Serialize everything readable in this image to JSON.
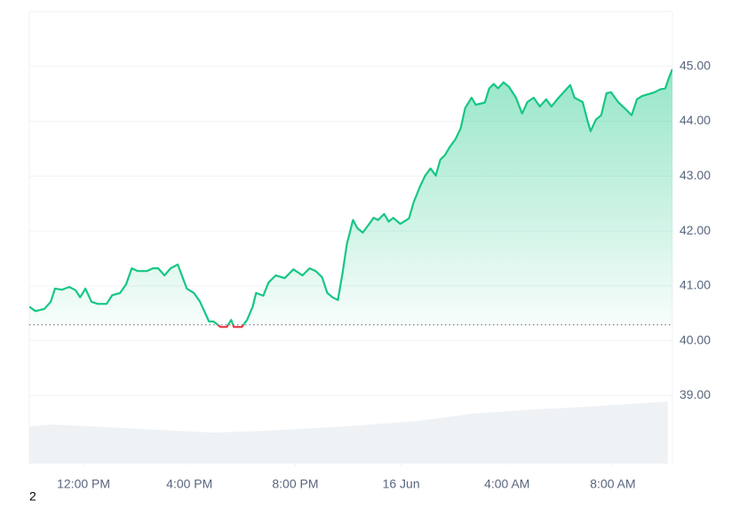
{
  "chart_data": {
    "type": "line",
    "x": [
      9.95,
      10.18,
      10.52,
      10.76,
      10.92,
      11.19,
      11.46,
      11.7,
      11.87,
      12.07,
      12.3,
      12.54,
      12.87,
      13.08,
      13.38,
      13.61,
      13.82,
      14.05,
      14.39,
      14.62,
      14.82,
      15.06,
      15.29,
      15.56,
      15.9,
      16.17,
      16.4,
      16.74,
      16.91,
      17.18,
      17.41,
      17.58,
      17.68,
      17.98,
      18.18,
      18.39,
      18.52,
      18.79,
      18.99,
      19.26,
      19.6,
      19.93,
      20.27,
      20.54,
      20.77,
      21.01,
      21.21,
      21.41,
      21.61,
      21.78,
      21.95,
      22.18,
      22.35,
      22.55,
      22.72,
      22.96,
      23.13,
      23.36,
      23.53,
      23.7,
      23.97,
      24.3,
      24.47,
      24.71,
      24.91,
      25.11,
      25.31,
      25.48,
      25.65,
      25.85,
      26.05,
      26.25,
      26.42,
      26.66,
      26.82,
      27.16,
      27.33,
      27.5,
      27.66,
      27.87,
      28.07,
      28.34,
      28.57,
      28.77,
      29.01,
      29.24,
      29.48,
      29.68,
      29.95,
      30.18,
      30.39,
      30.55,
      30.86,
      31.03,
      31.16,
      31.36,
      31.56,
      31.76,
      31.93,
      32.2,
      32.44,
      32.71,
      32.91,
      33.11,
      33.38,
      33.58,
      33.78,
      33.98,
      34.12,
      34.25
    ],
    "series": [
      {
        "color": "#16c784",
        "below_color": "#ea3943",
        "values": [
          40.62,
          40.54,
          40.58,
          40.71,
          40.95,
          40.93,
          40.98,
          40.92,
          40.79,
          40.95,
          40.71,
          40.67,
          40.67,
          40.83,
          40.87,
          41.03,
          41.32,
          41.27,
          41.27,
          41.32,
          41.32,
          41.19,
          41.32,
          41.39,
          40.95,
          40.87,
          40.71,
          40.35,
          40.35,
          40.25,
          40.25,
          40.38,
          40.25,
          40.25,
          40.38,
          40.62,
          40.87,
          40.82,
          41.06,
          41.19,
          41.14,
          41.3,
          41.19,
          41.32,
          41.27,
          41.16,
          40.87,
          40.79,
          40.74,
          41.22,
          41.76,
          42.2,
          42.05,
          41.97,
          42.08,
          42.24,
          42.2,
          42.31,
          42.17,
          42.24,
          42.13,
          42.23,
          42.52,
          42.81,
          43.01,
          43.14,
          43.01,
          43.3,
          43.38,
          43.54,
          43.67,
          43.87,
          44.24,
          44.43,
          44.3,
          44.34,
          44.6,
          44.68,
          44.6,
          44.71,
          44.63,
          44.43,
          44.14,
          44.35,
          44.43,
          44.27,
          44.4,
          44.27,
          44.43,
          44.55,
          44.66,
          44.43,
          44.35,
          44.03,
          43.82,
          44.03,
          44.11,
          44.51,
          44.53,
          44.35,
          44.24,
          44.11,
          44.4,
          44.46,
          44.5,
          44.53,
          44.58,
          44.6,
          44.79,
          44.95
        ]
      }
    ],
    "baseline": 40.29,
    "xlim": [
      9.95,
      34.25
    ],
    "xticks": [
      {
        "value": 12,
        "label": "12:00 PM"
      },
      {
        "value": 16,
        "label": "4:00 PM"
      },
      {
        "value": 20,
        "label": "8:00 PM"
      },
      {
        "value": 24,
        "label": "16 Jun"
      },
      {
        "value": 28,
        "label": "4:00 AM"
      },
      {
        "value": 32,
        "label": "8:00 AM"
      }
    ],
    "ylim": [
      37.76,
      46.0
    ],
    "yticks": [
      {
        "value": 39,
        "label": "39.00"
      },
      {
        "value": 40,
        "label": "40.00"
      },
      {
        "value": 41,
        "label": "41.00"
      },
      {
        "value": 42,
        "label": "42.00"
      },
      {
        "value": 43,
        "label": "43.00"
      },
      {
        "value": 44,
        "label": "44.00"
      },
      {
        "value": 45,
        "label": "45.00"
      }
    ],
    "grid": true
  },
  "page_label": "2"
}
